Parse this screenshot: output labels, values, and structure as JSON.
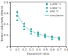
{
  "chart_data": {
    "type": "scatter",
    "x_label": "Expansion ratio",
    "y_label": "Thermal conductivity (W/m·K)",
    "x": [
      0.1,
      0.2,
      0.3,
      0.4,
      0.5,
      0.6,
      0.7
    ],
    "series": [
      {
        "name": "1,200 °C",
        "color": "#1f8f96",
        "marker": "diamond",
        "line_style": "none",
        "values": [
          0.62,
          0.41,
          0.31,
          0.25,
          0.21,
          0.18,
          0.16
        ]
      },
      {
        "name": "1,000 °C",
        "color": "#2aa5a8",
        "marker": "square",
        "line_style": "none",
        "values": [
          0.55,
          0.36,
          0.27,
          0.22,
          0.18,
          0.16,
          0.14
        ]
      },
      {
        "name": "800 °C",
        "color": "#45b8b5",
        "marker": "triangle",
        "line_style": "none",
        "values": [
          0.47,
          0.31,
          0.23,
          0.19,
          0.16,
          0.13,
          0.12
        ]
      },
      {
        "name": "simulation",
        "color": "#6cc9c6",
        "marker": "none",
        "line_style": "solid",
        "values": [
          0.58,
          0.38,
          0.28,
          0.23,
          0.19,
          0.165,
          0.145
        ]
      }
    ],
    "xlim": [
      0,
      0.8
    ],
    "xticks": [
      0,
      0.1,
      0.2,
      0.3,
      0.4,
      0.5,
      0.6,
      0.7,
      0.8
    ],
    "ylim": [
      0,
      0.8
    ],
    "yticks": [
      0,
      0.2,
      0.4,
      0.6,
      0.8
    ],
    "grid": false,
    "legend": "upper right"
  }
}
